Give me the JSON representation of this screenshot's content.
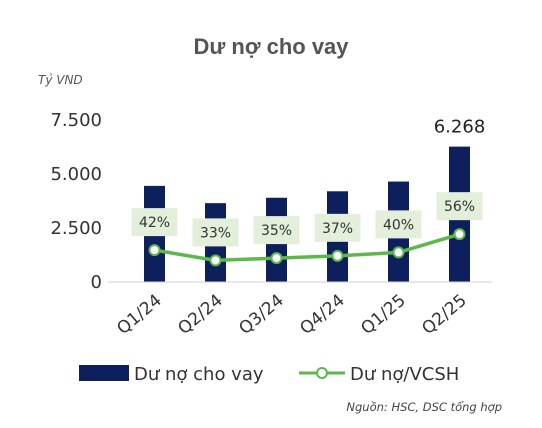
{
  "chart_data": {
    "type": "bar",
    "title": "Dư nợ cho vay",
    "unit_label": "Tỷ VND",
    "categories": [
      "Q1/24",
      "Q2/24",
      "Q3/24",
      "Q4/24",
      "Q1/25",
      "Q2/25"
    ],
    "y_ticks": [
      "0",
      "2.500",
      "5.000",
      "7.500"
    ],
    "ylim": [
      0,
      7500
    ],
    "series": [
      {
        "name": "Dư nợ cho vay",
        "type": "bar",
        "color": "#0d1f5c",
        "values": [
          4450,
          3650,
          3900,
          4200,
          4650,
          6268
        ],
        "data_labels": [
          "",
          "",
          "",
          "",
          "",
          "6.268"
        ]
      },
      {
        "name": "Dư nợ/VCSH",
        "type": "line",
        "color": "#5cb84a",
        "values": [
          42,
          33,
          35,
          37,
          40,
          56
        ],
        "data_labels": [
          "42%",
          "33%",
          "35%",
          "37%",
          "40%",
          "56%"
        ],
        "label_background": "#e3efdb"
      }
    ],
    "grid": false,
    "legend_position": "bottom",
    "source_note": "Nguồn: HSC, DSC tổng hợp"
  }
}
